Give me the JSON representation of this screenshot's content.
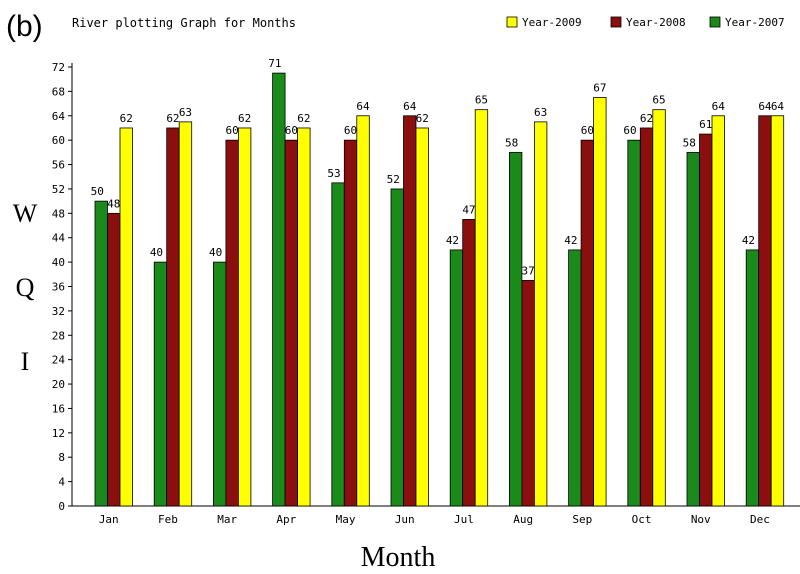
{
  "panel_label": "(b)",
  "chart_data": {
    "type": "bar",
    "title": "River plotting Graph for Months",
    "xlabel": "Month",
    "ylabel": "W Q I",
    "ylabel_letters": [
      "W",
      "Q",
      "I"
    ],
    "ylim": [
      0,
      72
    ],
    "yticks": [
      0,
      4,
      8,
      12,
      16,
      20,
      24,
      28,
      32,
      36,
      40,
      44,
      48,
      52,
      56,
      60,
      64,
      68,
      72
    ],
    "grid": false,
    "legend_position": "top-right",
    "categories": [
      "Jan",
      "Feb",
      "Mar",
      "Apr",
      "May",
      "Jun",
      "Jul",
      "Aug",
      "Sep",
      "Oct",
      "Nov",
      "Dec"
    ],
    "series": [
      {
        "name": "Year-2007",
        "color": "#1a8a1a",
        "values": [
          50,
          40,
          40,
          71,
          53,
          52,
          42,
          58,
          42,
          60,
          58,
          42
        ]
      },
      {
        "name": "Year-2008",
        "color": "#8b0f0f",
        "values": [
          48,
          62,
          60,
          60,
          60,
          64,
          47,
          37,
          60,
          62,
          61,
          64
        ]
      },
      {
        "name": "Year-2009",
        "color": "#ffff00",
        "values": [
          62,
          63,
          62,
          62,
          64,
          62,
          65,
          63,
          67,
          65,
          64,
          64
        ]
      }
    ],
    "legend_order": [
      "Year-2009",
      "Year-2008",
      "Year-2007"
    ]
  }
}
